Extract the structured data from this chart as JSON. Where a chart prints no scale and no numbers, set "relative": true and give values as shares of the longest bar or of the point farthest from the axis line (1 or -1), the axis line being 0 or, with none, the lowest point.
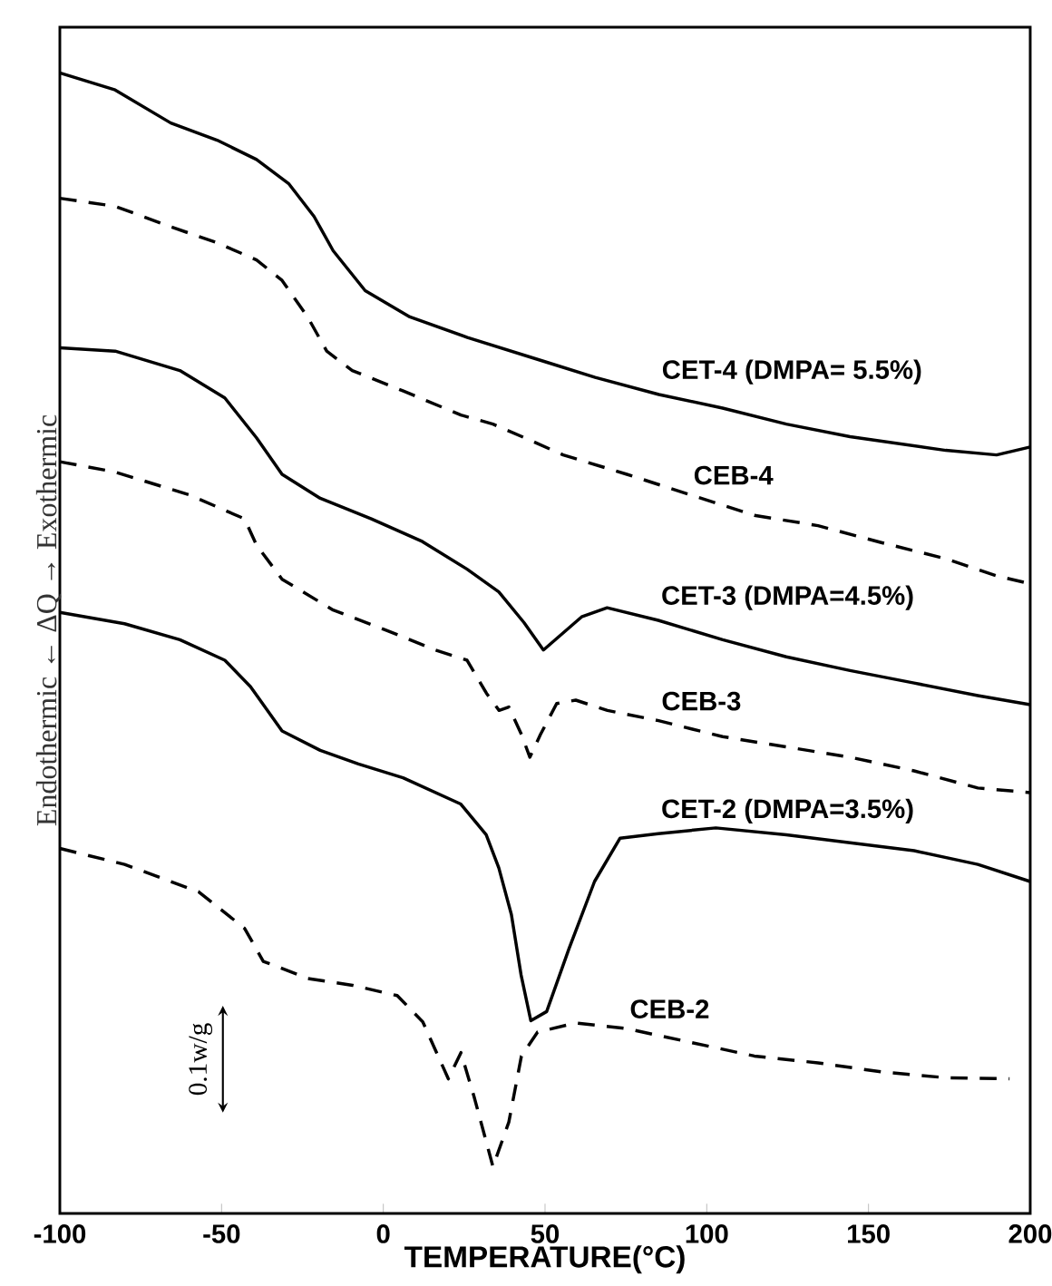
{
  "chart_data": {
    "type": "line",
    "relative": true,
    "xlabel": "TEMPERATURE(°C)",
    "ylabel": "Endothermic ← ΔQ → Exothermic",
    "xlim": [
      -100,
      200
    ],
    "xticks": [
      -100,
      -50,
      0,
      50,
      100,
      150,
      200
    ],
    "tick_labels": "x",
    "legend": false,
    "annotations": [
      "0.1w/g"
    ],
    "series": [
      {
        "name": "CET-4 (DMPA= 5.5%)",
        "color": "#000000",
        "line_style": "solid",
        "x": [
          -100,
          -82.9,
          -65.7,
          -51.4,
          -39.2,
          -29.3,
          -21.4,
          -15.5,
          -5.6,
          8.2,
          26,
          49.7,
          65.5,
          85.2,
          104.9,
          124.6,
          144.3,
          173.9,
          189.6,
          200
        ],
        "values": [
          1.0,
          0.985,
          0.956,
          0.941,
          0.924,
          0.903,
          0.874,
          0.844,
          0.809,
          0.786,
          0.768,
          0.747,
          0.733,
          0.718,
          0.706,
          0.692,
          0.681,
          0.669,
          0.665,
          0.672
        ]
      },
      {
        "name": "CEB-4",
        "color": "#000000",
        "line_style": "dashed",
        "x": [
          -100,
          -82.9,
          -65.7,
          -51.4,
          -39.2,
          -31.3,
          -23.4,
          -17.5,
          -9.6,
          6.2,
          24,
          33.9,
          43.7,
          55.6,
          75.3,
          95,
          114.7,
          134.4,
          154.2,
          173.9,
          189.6,
          200
        ],
        "values": [
          0.89,
          0.883,
          0.865,
          0.851,
          0.836,
          0.818,
          0.786,
          0.756,
          0.739,
          0.721,
          0.7,
          0.692,
          0.68,
          0.665,
          0.648,
          0.63,
          0.612,
          0.603,
          0.588,
          0.574,
          0.559,
          0.552
        ]
      },
      {
        "name": "CET-3 (DMPA=4.5%)",
        "color": "#000000",
        "line_style": "solid",
        "x": [
          -100,
          -82.9,
          -62.9,
          -49,
          -39.2,
          -31.3,
          -19.5,
          -3.7,
          12.1,
          25.8,
          35.7,
          43.5,
          49.5,
          61.3,
          69.2,
          85,
          104.9,
          124.6,
          144.3,
          164.1,
          183.8,
          200
        ],
        "values": [
          0.759,
          0.756,
          0.739,
          0.715,
          0.68,
          0.648,
          0.627,
          0.609,
          0.589,
          0.565,
          0.545,
          0.518,
          0.494,
          0.523,
          0.531,
          0.52,
          0.503,
          0.488,
          0.476,
          0.465,
          0.454,
          0.446
        ]
      },
      {
        "name": "CEB-3",
        "color": "#000000",
        "line_style": "dashed",
        "x": [
          -100,
          -82.9,
          -60,
          -42.9,
          -39.2,
          -31.3,
          -15.5,
          0.3,
          16.1,
          25.9,
          31.9,
          35.8,
          38.8,
          42.7,
          45.3,
          48.6,
          53.6,
          59.5,
          69.3,
          85.1,
          104.9,
          124.6,
          144.3,
          164.1,
          183.8,
          200
        ],
        "values": [
          0.659,
          0.65,
          0.63,
          0.609,
          0.586,
          0.556,
          0.529,
          0.512,
          0.494,
          0.485,
          0.456,
          0.441,
          0.444,
          0.42,
          0.4,
          0.42,
          0.447,
          0.45,
          0.441,
          0.432,
          0.418,
          0.409,
          0.4,
          0.388,
          0.373,
          0.369
        ]
      },
      {
        "name": "CET-2 (DMPA=3.5%)",
        "color": "#000000",
        "line_style": "solid",
        "x": [
          -100,
          -80,
          -62.9,
          -49,
          -41.1,
          -31.3,
          -19.5,
          -7.7,
          6.1,
          23.9,
          31.8,
          35.7,
          39.6,
          42.6,
          45.6,
          50.5,
          57.4,
          65.3,
          73.2,
          85,
          102.8,
          124.6,
          144.3,
          164.1,
          183.8,
          200
        ],
        "values": [
          0.527,
          0.517,
          0.503,
          0.485,
          0.462,
          0.423,
          0.406,
          0.394,
          0.382,
          0.359,
          0.332,
          0.303,
          0.262,
          0.209,
          0.169,
          0.177,
          0.232,
          0.291,
          0.329,
          0.333,
          0.338,
          0.332,
          0.325,
          0.318,
          0.306,
          0.291
        ]
      },
      {
        "name": "CEB-2",
        "color": "#000000",
        "line_style": "dashed",
        "x": [
          -100,
          -80,
          -57.1,
          -42.9,
          -37.1,
          -23.3,
          -9.5,
          4.3,
          12.2,
          20.1,
          24,
          28,
          33.9,
          38.8,
          42.7,
          47.7,
          59.5,
          75.3,
          95,
          114.7,
          134.4,
          154.2,
          173.9,
          193.6
        ],
        "values": [
          0.32,
          0.306,
          0.282,
          0.25,
          0.221,
          0.206,
          0.2,
          0.191,
          0.168,
          0.118,
          0.141,
          0.103,
          0.041,
          0.08,
          0.138,
          0.159,
          0.167,
          0.162,
          0.15,
          0.138,
          0.132,
          0.124,
          0.119,
          0.118
        ]
      }
    ]
  }
}
